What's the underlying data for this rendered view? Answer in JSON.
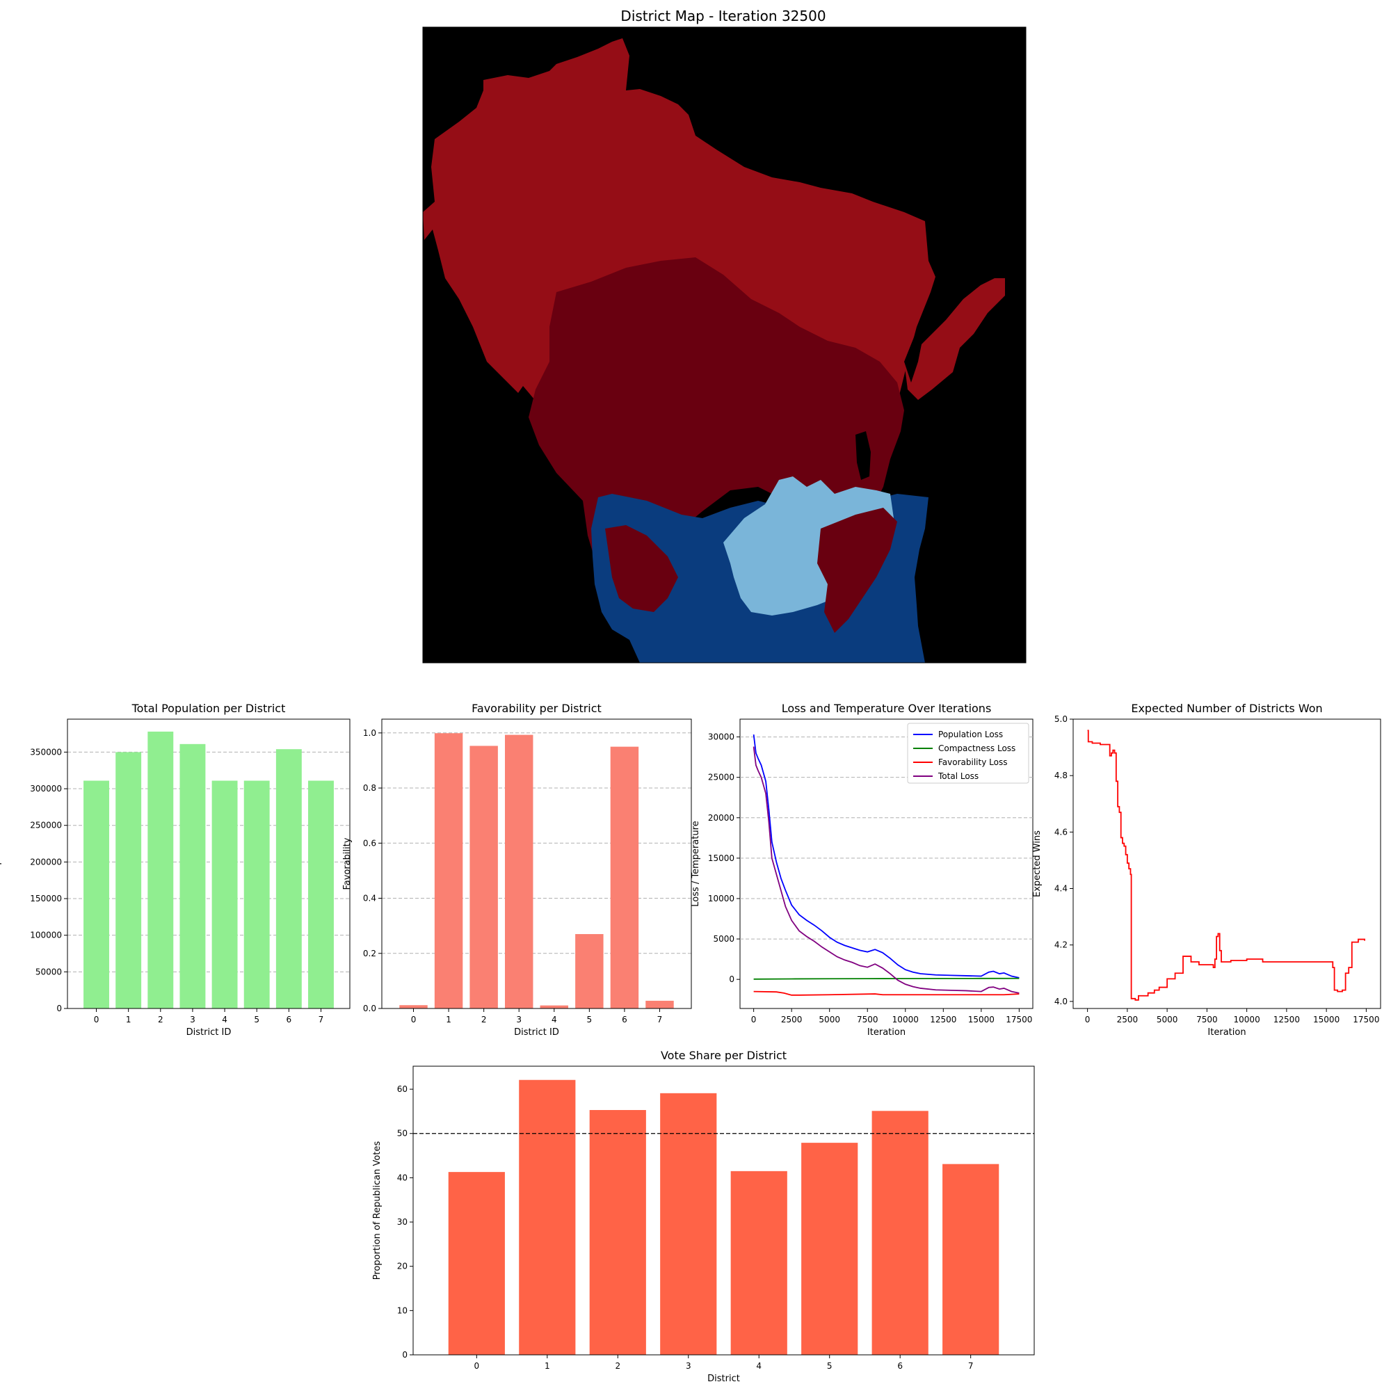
{
  "map": {
    "title": "District Map - Iteration 32500",
    "colors": {
      "background": "#000000",
      "red_main": "#950d16",
      "red_dark": "#690010",
      "blue_light": "#7ab5d9",
      "blue_dark": "#0a3c7e"
    }
  },
  "chart_data": [
    {
      "id": "population",
      "type": "bar",
      "title": "Total Population per District",
      "xlabel": "District ID",
      "ylabel": "Total Population",
      "categories": [
        "0",
        "1",
        "2",
        "3",
        "4",
        "5",
        "6",
        "7"
      ],
      "values": [
        311000,
        350000,
        378000,
        361000,
        311000,
        311000,
        354000,
        311000
      ],
      "ylim": [
        0,
        395000
      ],
      "yticks": [
        0,
        50000,
        100000,
        150000,
        200000,
        250000,
        300000,
        350000
      ],
      "ytick_labels": [
        "0",
        "50000",
        "100000",
        "150000",
        "200000",
        "250000",
        "300000",
        "350000"
      ],
      "grid": "y-dashed",
      "color": "#90ee90"
    },
    {
      "id": "favorability",
      "type": "bar",
      "title": "Favorability per District",
      "xlabel": "District ID",
      "ylabel": "Favorability",
      "categories": [
        "0",
        "1",
        "2",
        "3",
        "4",
        "5",
        "6",
        "7"
      ],
      "values": [
        0.012,
        0.999,
        0.953,
        0.993,
        0.011,
        0.27,
        0.95,
        0.028
      ],
      "ylim": [
        0,
        1.05
      ],
      "yticks": [
        0,
        0.2,
        0.4,
        0.6,
        0.8,
        1.0
      ],
      "ytick_labels": [
        "0.0",
        "0.2",
        "0.4",
        "0.6",
        "0.8",
        "1.0"
      ],
      "grid": "y-dashed",
      "color": "#fa8072"
    },
    {
      "id": "loss",
      "type": "line",
      "title": "Loss and Temperature Over Iterations",
      "xlabel": "Iteration",
      "ylabel": "Loss / Temperature",
      "xlim": [
        -900,
        18400
      ],
      "ylim": [
        -3600,
        32200
      ],
      "xticks": [
        0,
        2500,
        5000,
        7500,
        10000,
        12500,
        15000,
        17500
      ],
      "xtick_labels": [
        "0",
        "2500",
        "5000",
        "7500",
        "10000",
        "12500",
        "15000",
        "17500"
      ],
      "yticks": [
        0,
        5000,
        10000,
        15000,
        20000,
        25000,
        30000
      ],
      "ytick_labels": [
        "0",
        "5000",
        "10000",
        "15000",
        "20000",
        "25000",
        "30000"
      ],
      "grid": "y-dashed",
      "legend_position": "top-right",
      "series": [
        {
          "name": "Population Loss",
          "color": "#0000ff",
          "x": [
            0,
            150,
            300,
            500,
            800,
            1000,
            1200,
            1500,
            1800,
            2100,
            2500,
            3000,
            3500,
            4000,
            4500,
            5000,
            5500,
            6000,
            6500,
            7000,
            7500,
            8000,
            8500,
            9000,
            9500,
            10000,
            10500,
            11000,
            12000,
            13000,
            14000,
            15000,
            15500,
            15800,
            16200,
            16500,
            17000,
            17500
          ],
          "y": [
            30300,
            28000,
            27300,
            26500,
            24500,
            21000,
            17000,
            14500,
            12500,
            11000,
            9200,
            8000,
            7300,
            6700,
            6000,
            5200,
            4600,
            4200,
            3900,
            3600,
            3400,
            3700,
            3300,
            2600,
            1800,
            1200,
            900,
            700,
            550,
            500,
            450,
            400,
            900,
            1000,
            700,
            800,
            400,
            200
          ]
        },
        {
          "name": "Compactness Loss",
          "color": "#008000",
          "x": [
            0,
            2500,
            5000,
            7500,
            10000,
            12500,
            15000,
            17500
          ],
          "y": [
            30,
            60,
            80,
            90,
            100,
            110,
            115,
            120
          ]
        },
        {
          "name": "Favorability Loss",
          "color": "#ff0000",
          "x": [
            0,
            1500,
            2000,
            2500,
            3000,
            5000,
            8000,
            8500,
            9000,
            12000,
            15000,
            16500,
            17500
          ],
          "y": [
            -1500,
            -1550,
            -1700,
            -1950,
            -1950,
            -1900,
            -1800,
            -1900,
            -1900,
            -1900,
            -1900,
            -1900,
            -1800
          ]
        },
        {
          "name": "Total Loss",
          "color": "#800080",
          "x": [
            0,
            150,
            300,
            500,
            800,
            1000,
            1200,
            1500,
            1800,
            2100,
            2500,
            3000,
            3500,
            4000,
            4500,
            5000,
            5500,
            6000,
            6500,
            7000,
            7500,
            8000,
            8500,
            9000,
            9500,
            10000,
            10500,
            11000,
            12000,
            13000,
            14000,
            15000,
            15500,
            15800,
            16200,
            16500,
            17000,
            17500
          ],
          "y": [
            28800,
            26500,
            25800,
            25000,
            23000,
            19500,
            15000,
            13000,
            11000,
            9000,
            7300,
            6000,
            5300,
            4700,
            4000,
            3400,
            2800,
            2400,
            2100,
            1700,
            1500,
            1900,
            1400,
            700,
            -100,
            -600,
            -900,
            -1100,
            -1300,
            -1350,
            -1400,
            -1500,
            -1000,
            -950,
            -1200,
            -1100,
            -1500,
            -1700
          ]
        }
      ]
    },
    {
      "id": "wins",
      "type": "line",
      "title": "Expected Number of Districts Won",
      "xlabel": "Iteration",
      "ylabel": "Expected Wins",
      "xlim": [
        -900,
        18400
      ],
      "ylim": [
        3.975,
        5.0
      ],
      "xticks": [
        0,
        2500,
        5000,
        7500,
        10000,
        12500,
        15000,
        17500
      ],
      "xtick_labels": [
        "0",
        "2500",
        "5000",
        "7500",
        "10000",
        "12500",
        "15000",
        "17500"
      ],
      "yticks": [
        4.0,
        4.2,
        4.4,
        4.6,
        4.8,
        5.0
      ],
      "ytick_labels": [
        "4.0",
        "4.2",
        "4.4",
        "4.6",
        "4.8",
        "5.0"
      ],
      "series": [
        {
          "name": "",
          "color": "#ff0000",
          "x": [
            0,
            50,
            100,
            300,
            800,
            1200,
            1400,
            1500,
            1600,
            1700,
            1800,
            1900,
            2000,
            2100,
            2200,
            2300,
            2400,
            2500,
            2600,
            2700,
            2750,
            2800,
            3000,
            3200,
            3500,
            3800,
            4200,
            4500,
            5000,
            5500,
            6000,
            6500,
            7000,
            7500,
            7900,
            8000,
            8100,
            8200,
            8300,
            8400,
            8600,
            9000,
            10000,
            11000,
            12000,
            14000,
            15000,
            15300,
            15400,
            15500,
            15700,
            16000,
            16200,
            16400,
            16600,
            17000,
            17400
          ],
          "y": [
            4.96,
            4.92,
            4.92,
            4.915,
            4.91,
            4.91,
            4.87,
            4.88,
            4.89,
            4.88,
            4.78,
            4.69,
            4.67,
            4.58,
            4.56,
            4.55,
            4.52,
            4.49,
            4.47,
            4.45,
            4.01,
            4.01,
            4.005,
            4.02,
            4.02,
            4.03,
            4.04,
            4.05,
            4.08,
            4.1,
            4.16,
            4.14,
            4.13,
            4.13,
            4.12,
            4.15,
            4.23,
            4.24,
            4.18,
            4.14,
            4.14,
            4.145,
            4.15,
            4.14,
            4.14,
            4.14,
            4.14,
            4.14,
            4.12,
            4.04,
            4.035,
            4.04,
            4.1,
            4.12,
            4.21,
            4.22,
            4.215
          ]
        }
      ]
    },
    {
      "id": "voteshare",
      "type": "bar",
      "title": "Vote Share per District",
      "xlabel": "District",
      "ylabel": "Proportion of Republican Votes",
      "categories": [
        "0",
        "1",
        "2",
        "3",
        "4",
        "5",
        "6",
        "7"
      ],
      "values": [
        41.3,
        62.1,
        55.3,
        59.1,
        41.5,
        47.9,
        55.1,
        43.1
      ],
      "ylim": [
        0,
        65.2
      ],
      "yticks": [
        0,
        10,
        20,
        30,
        40,
        50,
        60
      ],
      "ytick_labels": [
        "0",
        "10",
        "20",
        "30",
        "40",
        "50",
        "60"
      ],
      "reference_line": 50,
      "color": "#ff6347"
    }
  ]
}
